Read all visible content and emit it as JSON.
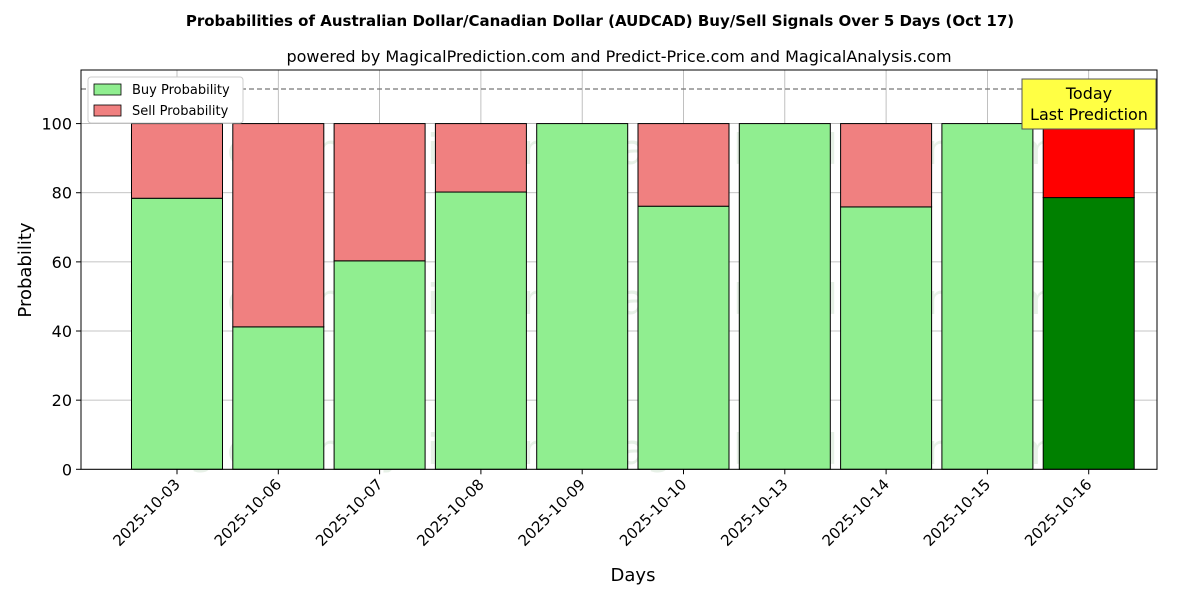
{
  "chart_data": {
    "type": "bar",
    "stacked": true,
    "title": "Probabilities of Australian Dollar/Canadian Dollar (AUDCAD) Buy/Sell Signals Over 5 Days (Oct 17)",
    "subtitle": "powered by MagicalPrediction.com and Predict-Price.com and MagicalAnalysis.com",
    "xlabel": "Days",
    "ylabel": "Probability",
    "ylim": [
      0,
      115.5
    ],
    "yticks": [
      0,
      20,
      40,
      60,
      80,
      100
    ],
    "categories": [
      "2025-10-03",
      "2025-10-06",
      "2025-10-07",
      "2025-10-08",
      "2025-10-09",
      "2025-10-10",
      "2025-10-13",
      "2025-10-14",
      "2025-10-15",
      "2025-10-16"
    ],
    "series": [
      {
        "name": "Buy Probability",
        "color": "#90ee90",
        "highlight_color": "#008000",
        "values": [
          78.4,
          41.2,
          60.3,
          80.2,
          100,
          76.1,
          100,
          75.9,
          100,
          78.6
        ]
      },
      {
        "name": "Sell Probability",
        "color": "#f08080",
        "highlight_color": "#ff0000",
        "values": [
          21.6,
          58.8,
          39.7,
          19.8,
          0,
          23.9,
          0,
          24.1,
          0,
          21.4
        ]
      }
    ],
    "reference_line": 110,
    "annotation": {
      "line1": "Today",
      "line2": "Last Prediction"
    },
    "legend_position": "top-left",
    "grid": true,
    "watermarks": [
      "MagicalAnalysis.com",
      "MagicalPrediction.com"
    ]
  }
}
